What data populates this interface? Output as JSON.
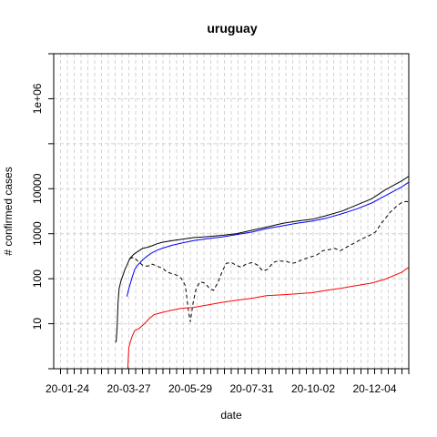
{
  "chart_data": {
    "type": "line",
    "title": "uruguay",
    "xlabel": "date",
    "ylabel": "# confirmed cases",
    "y_scale": "log",
    "ylim": [
      1,
      10000000
    ],
    "xlim": [
      "2020-01-10",
      "2021-01-08"
    ],
    "grid": true,
    "x_tick_labels": [
      "20-01-24",
      "20-03-27",
      "20-05-29",
      "20-07-31",
      "20-10-02",
      "20-12-04"
    ],
    "y_tick_labels": [
      "10",
      "100",
      "1000",
      "10000",
      "1e+06"
    ],
    "series": [
      {
        "color": "#000000",
        "style": "solid",
        "points": [
          [
            "2020-03-13",
            4
          ],
          [
            "2020-03-14",
            4
          ],
          [
            "2020-03-15",
            8
          ],
          [
            "2020-03-16",
            30
          ],
          [
            "2020-03-17",
            60
          ],
          [
            "2020-03-19",
            90
          ],
          [
            "2020-03-21",
            120
          ],
          [
            "2020-03-23",
            160
          ],
          [
            "2020-03-25",
            200
          ],
          [
            "2020-03-28",
            280
          ],
          [
            "2020-04-01",
            350
          ],
          [
            "2020-04-05",
            400
          ],
          [
            "2020-04-10",
            470
          ],
          [
            "2020-04-15",
            500
          ],
          [
            "2020-04-20",
            540
          ],
          [
            "2020-04-25",
            600
          ],
          [
            "2020-05-01",
            650
          ],
          [
            "2020-05-10",
            700
          ],
          [
            "2020-05-20",
            750
          ],
          [
            "2020-06-01",
            820
          ],
          [
            "2020-06-15",
            860
          ],
          [
            "2020-07-01",
            920
          ],
          [
            "2020-07-15",
            1000
          ],
          [
            "2020-08-01",
            1200
          ],
          [
            "2020-08-15",
            1400
          ],
          [
            "2020-09-01",
            1700
          ],
          [
            "2020-09-15",
            1900
          ],
          [
            "2020-10-01",
            2100
          ],
          [
            "2020-10-15",
            2500
          ],
          [
            "2020-11-01",
            3200
          ],
          [
            "2020-11-15",
            4300
          ],
          [
            "2020-12-01",
            6000
          ],
          [
            "2020-12-15",
            9500
          ],
          [
            "2021-01-01",
            15000
          ],
          [
            "2021-01-08",
            19000
          ]
        ]
      },
      {
        "color": "#0000ff",
        "style": "solid",
        "points": [
          [
            "2020-03-25",
            40
          ],
          [
            "2020-03-27",
            60
          ],
          [
            "2020-03-30",
            100
          ],
          [
            "2020-04-02",
            160
          ],
          [
            "2020-04-05",
            200
          ],
          [
            "2020-04-10",
            260
          ],
          [
            "2020-04-15",
            320
          ],
          [
            "2020-04-20",
            380
          ],
          [
            "2020-04-25",
            430
          ],
          [
            "2020-05-01",
            480
          ],
          [
            "2020-05-10",
            550
          ],
          [
            "2020-05-20",
            620
          ],
          [
            "2020-06-01",
            700
          ],
          [
            "2020-06-15",
            770
          ],
          [
            "2020-07-01",
            850
          ],
          [
            "2020-07-15",
            950
          ],
          [
            "2020-08-01",
            1100
          ],
          [
            "2020-08-15",
            1300
          ],
          [
            "2020-09-01",
            1500
          ],
          [
            "2020-09-15",
            1700
          ],
          [
            "2020-10-01",
            1900
          ],
          [
            "2020-10-15",
            2200
          ],
          [
            "2020-11-01",
            2800
          ],
          [
            "2020-11-15",
            3500
          ],
          [
            "2020-12-01",
            4800
          ],
          [
            "2020-12-15",
            7000
          ],
          [
            "2021-01-01",
            11000
          ],
          [
            "2021-01-08",
            14000
          ]
        ]
      },
      {
        "color": "#000000",
        "style": "dashed",
        "points": [
          [
            "2020-03-28",
            280
          ],
          [
            "2020-04-01",
            300
          ],
          [
            "2020-04-04",
            260
          ],
          [
            "2020-04-07",
            230
          ],
          [
            "2020-04-10",
            200
          ],
          [
            "2020-04-15",
            190
          ],
          [
            "2020-04-20",
            210
          ],
          [
            "2020-04-25",
            190
          ],
          [
            "2020-05-01",
            170
          ],
          [
            "2020-05-05",
            140
          ],
          [
            "2020-05-10",
            130
          ],
          [
            "2020-05-15",
            120
          ],
          [
            "2020-05-20",
            100
          ],
          [
            "2020-05-24",
            70
          ],
          [
            "2020-05-27",
            20
          ],
          [
            "2020-05-29",
            11
          ],
          [
            "2020-06-01",
            30
          ],
          [
            "2020-06-04",
            60
          ],
          [
            "2020-06-08",
            85
          ],
          [
            "2020-06-13",
            80
          ],
          [
            "2020-06-18",
            60
          ],
          [
            "2020-06-22",
            55
          ],
          [
            "2020-06-27",
            90
          ],
          [
            "2020-07-01",
            150
          ],
          [
            "2020-07-05",
            220
          ],
          [
            "2020-07-10",
            230
          ],
          [
            "2020-07-15",
            200
          ],
          [
            "2020-07-20",
            180
          ],
          [
            "2020-07-25",
            210
          ],
          [
            "2020-08-01",
            230
          ],
          [
            "2020-08-06",
            200
          ],
          [
            "2020-08-11",
            150
          ],
          [
            "2020-08-16",
            160
          ],
          [
            "2020-08-22",
            230
          ],
          [
            "2020-08-27",
            250
          ],
          [
            "2020-09-05",
            240
          ],
          [
            "2020-09-10",
            220
          ],
          [
            "2020-09-15",
            230
          ],
          [
            "2020-09-20",
            260
          ],
          [
            "2020-09-28",
            300
          ],
          [
            "2020-10-05",
            330
          ],
          [
            "2020-10-12",
            420
          ],
          [
            "2020-10-18",
            440
          ],
          [
            "2020-10-24",
            470
          ],
          [
            "2020-10-30",
            420
          ],
          [
            "2020-11-05",
            500
          ],
          [
            "2020-11-12",
            600
          ],
          [
            "2020-11-20",
            750
          ],
          [
            "2020-11-28",
            900
          ],
          [
            "2020-12-05",
            1100
          ],
          [
            "2020-12-10",
            1600
          ],
          [
            "2020-12-15",
            2200
          ],
          [
            "2020-12-20",
            3000
          ],
          [
            "2020-12-26",
            4000
          ],
          [
            "2021-01-01",
            5000
          ],
          [
            "2021-01-05",
            5200
          ],
          [
            "2021-01-08",
            5100
          ]
        ]
      },
      {
        "color": "#ff0000",
        "style": "solid",
        "points": [
          [
            "2020-03-25",
            1
          ],
          [
            "2020-03-26",
            1
          ],
          [
            "2020-03-27",
            3
          ],
          [
            "2020-03-30",
            5
          ],
          [
            "2020-04-02",
            7
          ],
          [
            "2020-04-07",
            8
          ],
          [
            "2020-04-12",
            10
          ],
          [
            "2020-04-17",
            13
          ],
          [
            "2020-04-22",
            16
          ],
          [
            "2020-05-01",
            18
          ],
          [
            "2020-05-10",
            20
          ],
          [
            "2020-05-20",
            22
          ],
          [
            "2020-06-01",
            23
          ],
          [
            "2020-06-15",
            26
          ],
          [
            "2020-07-01",
            30
          ],
          [
            "2020-07-15",
            33
          ],
          [
            "2020-08-01",
            37
          ],
          [
            "2020-08-15",
            42
          ],
          [
            "2020-09-01",
            44
          ],
          [
            "2020-09-15",
            46
          ],
          [
            "2020-10-01",
            49
          ],
          [
            "2020-10-15",
            55
          ],
          [
            "2020-11-01",
            62
          ],
          [
            "2020-11-15",
            70
          ],
          [
            "2020-12-01",
            80
          ],
          [
            "2020-12-15",
            98
          ],
          [
            "2021-01-01",
            140
          ],
          [
            "2021-01-08",
            180
          ]
        ]
      }
    ]
  }
}
